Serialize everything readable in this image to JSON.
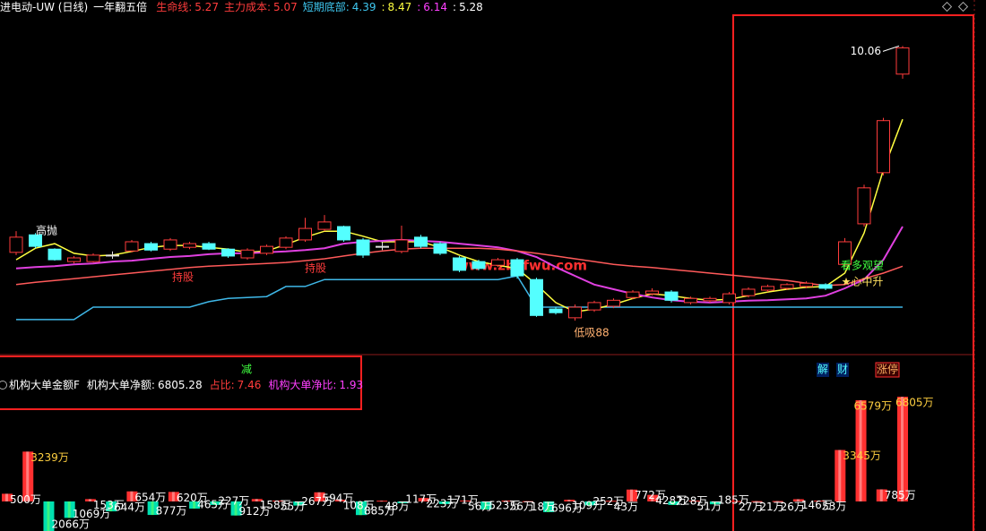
{
  "header": {
    "security": "进电动-UW (日线)",
    "indicator": "一年翻五倍",
    "items": [
      {
        "label": "生命线:",
        "value": 5.27,
        "color": "#ff3c3c"
      },
      {
        "label": "主力成本:",
        "value": 5.07,
        "color": "#ff3c3c"
      },
      {
        "label": "短期底部:",
        "value": 4.39,
        "color": "#3fc8f0"
      },
      {
        "label": ":",
        "value": 8.47,
        "color": "#ffff40"
      },
      {
        "label": ":",
        "value": 6.14,
        "color": "#ff40ff"
      },
      {
        "label": ":",
        "value": 5.28,
        "color": "#ffffff"
      }
    ]
  },
  "watermark": "www.zbzfwu.com",
  "chart_data": [
    {
      "type": "candlestick",
      "ylim": [
        3.38,
        10.67
      ],
      "up_color": "#ff3c3c",
      "down_color": "#54ffff",
      "flat_color": "#e0e0e0",
      "open": [
        5.58,
        5.96,
        5.65,
        5.38,
        5.38,
        5.52,
        5.61,
        5.77,
        5.65,
        5.69,
        5.77,
        5.65,
        5.46,
        5.56,
        5.69,
        5.85,
        6.08,
        6.14,
        5.85,
        5.71,
        5.6,
        5.91,
        5.77,
        5.46,
        5.38,
        5.3,
        5.42,
        4.99,
        4.35,
        4.16,
        4.33,
        4.41,
        4.6,
        4.68,
        4.72,
        4.49,
        4.53,
        4.49,
        4.64,
        4.76,
        4.8,
        4.84,
        4.88,
        5.32,
        6.2,
        7.31,
        9.45
      ],
      "high": [
        6.04,
        6.0,
        5.67,
        5.5,
        5.56,
        5.6,
        5.85,
        5.81,
        5.89,
        5.81,
        5.81,
        5.67,
        5.67,
        5.75,
        5.93,
        6.33,
        6.39,
        6.16,
        5.89,
        5.81,
        6.16,
        5.96,
        5.81,
        5.5,
        5.42,
        5.46,
        5.46,
        5.03,
        4.39,
        4.45,
        4.53,
        4.58,
        4.76,
        4.8,
        4.76,
        4.62,
        4.62,
        4.72,
        4.82,
        4.88,
        4.91,
        4.95,
        4.91,
        5.89,
        7.05,
        8.5,
        10.06
      ],
      "low": [
        5.52,
        5.67,
        5.4,
        5.34,
        5.36,
        5.44,
        5.58,
        5.6,
        5.61,
        5.65,
        5.63,
        5.46,
        5.42,
        5.52,
        5.65,
        5.81,
        6.04,
        5.81,
        5.46,
        5.63,
        5.56,
        5.67,
        5.52,
        5.15,
        5.19,
        5.26,
        5.01,
        4.18,
        4.23,
        4.1,
        4.29,
        4.37,
        4.56,
        4.64,
        4.49,
        4.45,
        4.49,
        4.45,
        4.6,
        4.72,
        4.76,
        4.8,
        4.76,
        5.26,
        6.14,
        7.25,
        9.35
      ],
      "close": [
        5.91,
        5.71,
        5.42,
        5.46,
        5.52,
        5.52,
        5.81,
        5.63,
        5.85,
        5.77,
        5.65,
        5.5,
        5.63,
        5.71,
        5.89,
        6.1,
        6.24,
        5.85,
        5.52,
        5.71,
        5.85,
        5.71,
        5.56,
        5.19,
        5.23,
        5.42,
        5.07,
        4.21,
        4.27,
        4.39,
        4.49,
        4.54,
        4.72,
        4.74,
        4.54,
        4.58,
        4.58,
        4.68,
        4.78,
        4.84,
        4.88,
        4.91,
        4.8,
        5.81,
        6.98,
        8.44,
        10.02
      ],
      "series": [
        {
          "name": "短期底部",
          "color": "#3fb8e8",
          "values": [
            4.12,
            4.12,
            4.12,
            4.12,
            4.39,
            4.39,
            4.39,
            4.39,
            4.39,
            4.39,
            4.51,
            4.58,
            4.6,
            4.62,
            4.84,
            4.84,
            4.99,
            4.99,
            4.99,
            4.99,
            4.99,
            4.99,
            4.99,
            4.99,
            4.99,
            4.99,
            5.07,
            4.39,
            4.39,
            4.39,
            4.39,
            4.39,
            4.39,
            4.39,
            4.39,
            4.39,
            4.39,
            4.39,
            4.39,
            4.39,
            4.39,
            4.39,
            4.39,
            4.39,
            4.39,
            4.39,
            4.39
          ]
        },
        {
          "color": "#ffff40",
          "values": [
            5.42,
            5.67,
            5.77,
            5.56,
            5.5,
            5.52,
            5.6,
            5.69,
            5.73,
            5.73,
            5.69,
            5.65,
            5.58,
            5.61,
            5.75,
            5.91,
            6.04,
            6.04,
            5.93,
            5.81,
            5.81,
            5.81,
            5.69,
            5.52,
            5.38,
            5.3,
            5.23,
            4.88,
            4.49,
            4.29,
            4.35,
            4.45,
            4.58,
            4.68,
            4.64,
            4.58,
            4.54,
            4.56,
            4.64,
            4.72,
            4.78,
            4.82,
            4.84,
            5.13,
            6.0,
            7.37,
            8.47
          ]
        },
        {
          "color": "#e040e0",
          "values": [
            5.23,
            5.26,
            5.28,
            5.32,
            5.34,
            5.38,
            5.4,
            5.44,
            5.48,
            5.5,
            5.54,
            5.56,
            5.56,
            5.58,
            5.6,
            5.63,
            5.67,
            5.77,
            5.81,
            5.83,
            5.85,
            5.83,
            5.81,
            5.77,
            5.73,
            5.69,
            5.61,
            5.48,
            5.26,
            5.07,
            4.88,
            4.78,
            4.68,
            4.6,
            4.54,
            4.51,
            4.49,
            4.51,
            4.53,
            4.54,
            4.56,
            4.58,
            4.64,
            4.8,
            4.99,
            5.42,
            6.14
          ]
        },
        {
          "color": "#ff5a5a",
          "values": [
            4.88,
            4.93,
            4.97,
            5.01,
            5.05,
            5.09,
            5.13,
            5.17,
            5.21,
            5.25,
            5.28,
            5.3,
            5.32,
            5.34,
            5.36,
            5.4,
            5.44,
            5.5,
            5.56,
            5.61,
            5.65,
            5.67,
            5.67,
            5.67,
            5.67,
            5.65,
            5.61,
            5.56,
            5.5,
            5.44,
            5.38,
            5.32,
            5.28,
            5.25,
            5.21,
            5.17,
            5.13,
            5.09,
            5.05,
            5.01,
            4.97,
            4.91,
            4.86,
            4.88,
            5.01,
            5.13,
            5.28
          ]
        }
      ],
      "annotations": [
        {
          "text": "高抛",
          "color": "#ffffff"
        },
        {
          "text": "持股",
          "color": "#ff3c3c"
        },
        {
          "text": "持股",
          "color": "#ff3c3c"
        },
        {
          "text": "低吸88",
          "color": "#ffb070"
        },
        {
          "text": "看多观望",
          "color": "#40ff40"
        },
        {
          "text": "★心中升",
          "color": "#ffe060"
        }
      ]
    },
    {
      "type": "bar",
      "title": "机构大单金额F",
      "ylim": [
        -1921,
        7857
      ],
      "up_color": "#ff3030",
      "down_color": "#00e0b0",
      "items": [
        {
          "label": "机构大单净额:",
          "value": 6805.28,
          "color": "#ffffff"
        },
        {
          "label": "占比:",
          "value": 7.46,
          "color": "#ff3c3c"
        },
        {
          "label": "机构大单净比:",
          "value": 1.93,
          "color": "#ff40ff"
        }
      ],
      "signals": [
        {
          "text": "减",
          "color": "#40ff40"
        },
        {
          "text": "解",
          "color": "#54ffff"
        },
        {
          "text": "财",
          "color": "#54ffff"
        },
        {
          "text": "涨停",
          "color": "#ffb060"
        }
      ],
      "values": [
        500,
        3239,
        -2066,
        -1069,
        153,
        -644,
        654,
        -877,
        620,
        -465,
        -227,
        -912,
        158,
        55,
        -267,
        594,
        108,
        -885,
        48,
        -117,
        223,
        -171,
        56,
        -523,
        56,
        18,
        -696,
        109,
        -252,
        43,
        772,
        428,
        -228,
        51,
        -185,
        27,
        21,
        26,
        146,
        53,
        3345,
        6579,
        785,
        6805
      ],
      "value_labels": [
        "500万",
        "3239万",
        "2066万",
        "1069万",
        "153万",
        "644万",
        "654万",
        "877万",
        "620万",
        "465万",
        "227万",
        "912万",
        "158万",
        "55万",
        "267万",
        "594万",
        "108万",
        "885万",
        "48万",
        "117万",
        "223万",
        "171万",
        "56万",
        "523万",
        "56万",
        "18万",
        "696万",
        "109万",
        "252万",
        "43万",
        "772万",
        "428万",
        "228万",
        "51万",
        "185万",
        "27万",
        "21万",
        "26万",
        "146万",
        "53万",
        "3345万",
        "6579万",
        "785万",
        "6805万"
      ]
    }
  ]
}
